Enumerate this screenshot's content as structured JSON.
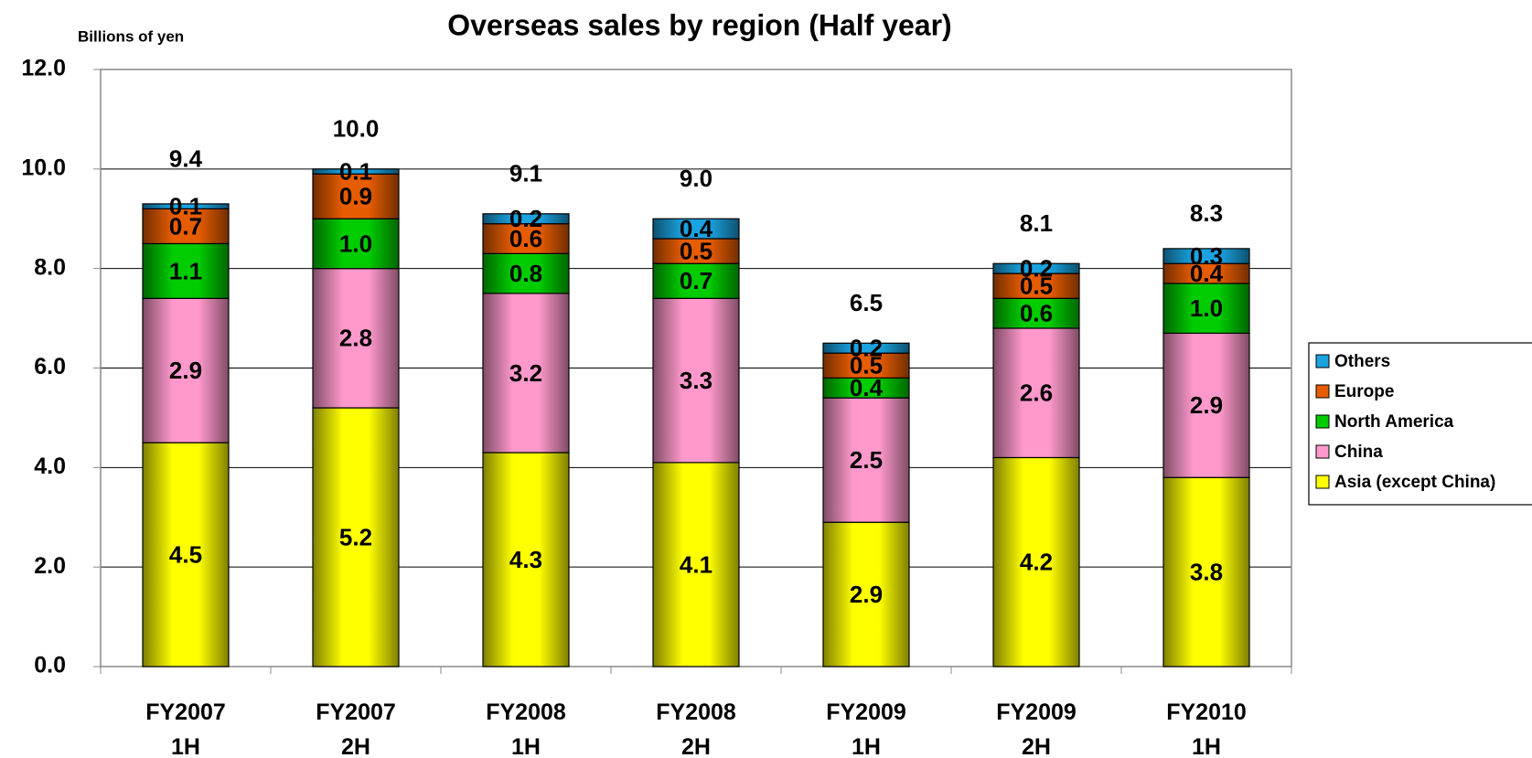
{
  "chart_data": {
    "type": "stacked-bar",
    "title": "Overseas sales by region (Half year)",
    "y_axis_label": "Billions of yen",
    "categories": [
      [
        "FY2007",
        "1H"
      ],
      [
        "FY2007",
        "2H"
      ],
      [
        "FY2008",
        "1H"
      ],
      [
        "FY2008",
        "2H"
      ],
      [
        "FY2009",
        "1H"
      ],
      [
        "FY2009",
        "2H"
      ],
      [
        "FY2010",
        "1H"
      ]
    ],
    "series": [
      {
        "name": "Asia (except China)",
        "color": "#ffff00",
        "values": [
          4.5,
          5.2,
          4.3,
          4.1,
          2.9,
          4.2,
          3.8
        ],
        "value_labels": [
          "4.5",
          "5.2",
          "4.3",
          "4.1",
          "2.9",
          "4.2",
          "3.8"
        ]
      },
      {
        "name": "China",
        "color": "#ff99cc",
        "values": [
          2.9,
          2.8,
          3.2,
          3.3,
          2.5,
          2.6,
          2.9
        ],
        "value_labels": [
          "2.9",
          "2.8",
          "3.2",
          "3.3",
          "2.5",
          "2.6",
          "2.9"
        ]
      },
      {
        "name": "North America",
        "color": "#00cc00",
        "values": [
          1.1,
          1.0,
          0.8,
          0.7,
          0.4,
          0.6,
          1.0
        ],
        "value_labels": [
          "1.1",
          "1.0",
          "0.8",
          "0.7",
          "0.4",
          "0.6",
          "1.0"
        ]
      },
      {
        "name": "Europe",
        "color": "#e65c00",
        "values": [
          0.7,
          0.9,
          0.6,
          0.5,
          0.5,
          0.5,
          0.4
        ],
        "value_labels": [
          "0.7",
          "0.9",
          "0.6",
          "0.5",
          "0.5",
          "0.5",
          "0.4"
        ]
      },
      {
        "name": "Others",
        "color": "#1aa3e0",
        "values": [
          0.1,
          0.1,
          0.2,
          0.4,
          0.2,
          0.2,
          0.3
        ],
        "value_labels": [
          "0.1",
          "0.1",
          "0.2",
          "0.4",
          "0.2",
          "0.2",
          "0.3"
        ]
      }
    ],
    "totals": [
      9.4,
      10.0,
      9.1,
      9.0,
      6.5,
      8.1,
      8.3
    ],
    "total_labels": [
      "9.4",
      "10.0",
      "9.1",
      "9.0",
      "6.5",
      "8.1",
      "8.3"
    ],
    "ylim": [
      0,
      12
    ],
    "yticks": [
      {
        "value": 0,
        "label": "0.0"
      },
      {
        "value": 2,
        "label": "2.0"
      },
      {
        "value": 4,
        "label": "4.0"
      },
      {
        "value": 6,
        "label": "6.0"
      },
      {
        "value": 8,
        "label": "8.0"
      },
      {
        "value": 10,
        "label": "10.0"
      },
      {
        "value": 12,
        "label": "12.0"
      }
    ],
    "grid": true,
    "legend": "right"
  }
}
